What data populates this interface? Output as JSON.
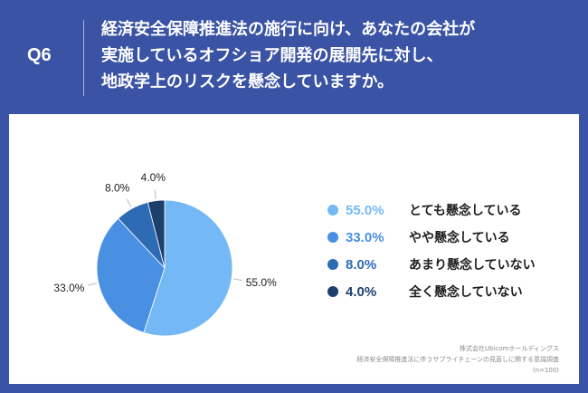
{
  "header": {
    "question_number": "Q6",
    "question_lines": [
      "経済安全保障推進法の施行に向け、あなたの会社が",
      "実施しているオフショア開発の展開先に対し、",
      "地政学上のリスクを懸念していますか。"
    ]
  },
  "chart_data": {
    "type": "pie",
    "slices": [
      {
        "label": "とても懸念している",
        "value": 55.0,
        "value_label": "55.0%",
        "color": "#74b9f5"
      },
      {
        "label": "やや懸念している",
        "value": 33.0,
        "value_label": "33.0%",
        "color": "#4a90e2"
      },
      {
        "label": "あまり懸念していない",
        "value": 8.0,
        "value_label": "8.0%",
        "color": "#2d6cb5"
      },
      {
        "label": "全く懸念していない",
        "value": 4.0,
        "value_label": "4.0%",
        "color": "#1d3f6e"
      }
    ],
    "start_angle": "12 o'clock",
    "direction": "clockwise",
    "legend_placement": "right"
  },
  "source": {
    "lines": [
      "株式会社Ubicomホールディングス",
      "経済安全保障推進法に伴うサプライチェーンの見直しに関する意識調査",
      "(n=100)"
    ]
  }
}
